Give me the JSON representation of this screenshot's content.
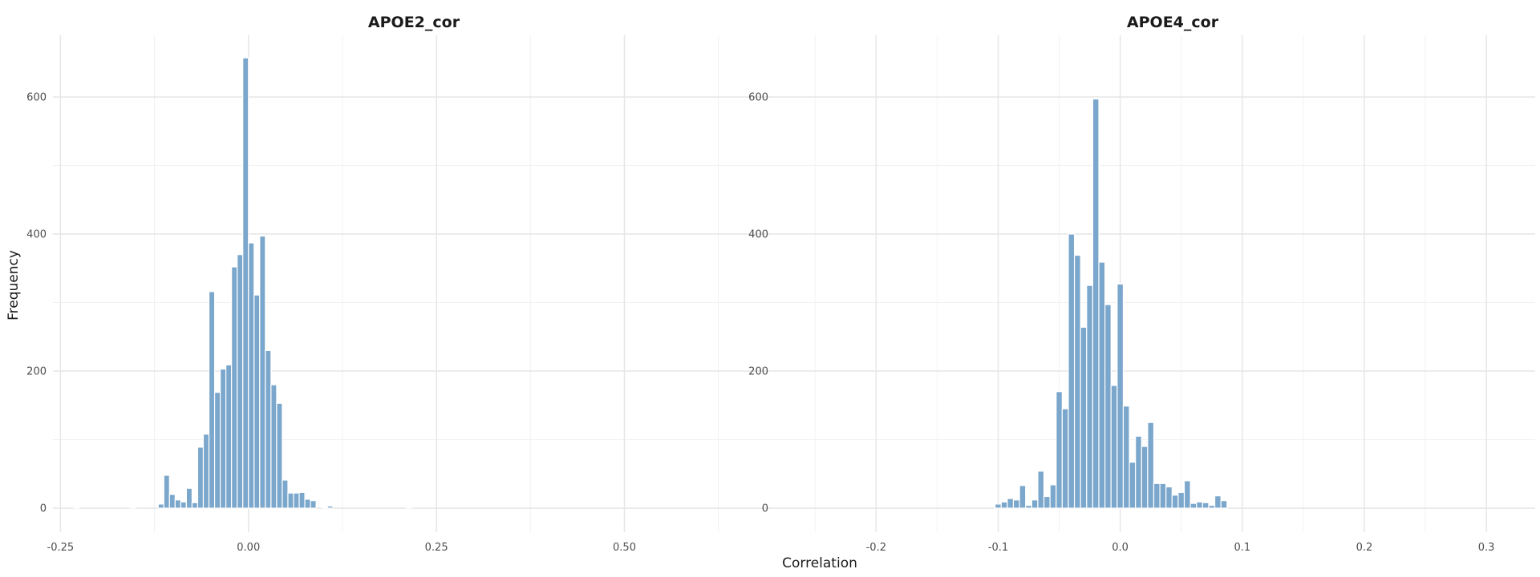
{
  "chart_data": [
    {
      "type": "bar",
      "title": "APOE2_cor",
      "xlim": [
        -0.26,
        0.7
      ],
      "ylim": [
        -35,
        690
      ],
      "bin_width": 0.0075,
      "x_major_ticks": [
        -0.25,
        0.0,
        0.25,
        0.5
      ],
      "x_tick_labels": [
        "-0.25",
        "0.00",
        "0.25",
        "0.50"
      ],
      "x_minor_ticks": [
        -0.125,
        0.125,
        0.375,
        0.625
      ],
      "y_major_ticks": [
        0,
        200,
        400,
        600
      ],
      "y_tick_labels": [
        "0",
        "200",
        "400",
        "600"
      ],
      "y_minor_ticks": [
        100,
        300,
        500
      ],
      "bins": [
        {
          "x": -0.2325,
          "count": 1
        },
        {
          "x": -0.1575,
          "count": 1
        },
        {
          "x": -0.12,
          "count": 6
        },
        {
          "x": -0.1125,
          "count": 48
        },
        {
          "x": -0.105,
          "count": 20
        },
        {
          "x": -0.0975,
          "count": 12
        },
        {
          "x": -0.09,
          "count": 9
        },
        {
          "x": -0.0825,
          "count": 29
        },
        {
          "x": -0.075,
          "count": 8
        },
        {
          "x": -0.0675,
          "count": 89
        },
        {
          "x": -0.06,
          "count": 108
        },
        {
          "x": -0.0525,
          "count": 316
        },
        {
          "x": -0.045,
          "count": 169
        },
        {
          "x": -0.0375,
          "count": 203
        },
        {
          "x": -0.03,
          "count": 209
        },
        {
          "x": -0.0225,
          "count": 352
        },
        {
          "x": -0.015,
          "count": 370
        },
        {
          "x": -0.0075,
          "count": 657
        },
        {
          "x": 0.0,
          "count": 387
        },
        {
          "x": 0.0075,
          "count": 311
        },
        {
          "x": 0.015,
          "count": 397
        },
        {
          "x": 0.0225,
          "count": 230
        },
        {
          "x": 0.03,
          "count": 180
        },
        {
          "x": 0.0375,
          "count": 153
        },
        {
          "x": 0.045,
          "count": 41
        },
        {
          "x": 0.0525,
          "count": 22
        },
        {
          "x": 0.06,
          "count": 22
        },
        {
          "x": 0.0675,
          "count": 23
        },
        {
          "x": 0.075,
          "count": 13
        },
        {
          "x": 0.0825,
          "count": 11
        },
        {
          "x": 0.0975,
          "count": 1
        },
        {
          "x": 0.105,
          "count": 3
        },
        {
          "x": 0.21,
          "count": 1
        }
      ]
    },
    {
      "type": "bar",
      "title": "APOE4_cor",
      "xlim": [
        -0.283,
        0.34
      ],
      "ylim": [
        -35,
        690
      ],
      "bin_width": 0.005,
      "x_major_ticks": [
        -0.2,
        -0.1,
        0.0,
        0.1,
        0.2,
        0.3
      ],
      "x_tick_labels": [
        "-0.2",
        "-0.1",
        "0.0",
        "0.1",
        "0.2",
        "0.3"
      ],
      "x_minor_ticks": [
        -0.25,
        -0.15,
        -0.05,
        0.05,
        0.15,
        0.25
      ],
      "y_major_ticks": [
        0,
        200,
        400,
        600
      ],
      "y_tick_labels": [
        "0",
        "200",
        "400",
        "600"
      ],
      "y_minor_ticks": [
        100,
        300,
        500
      ],
      "bins": [
        {
          "x": -0.1025,
          "count": 6
        },
        {
          "x": -0.0975,
          "count": 9
        },
        {
          "x": -0.0925,
          "count": 14
        },
        {
          "x": -0.0875,
          "count": 12
        },
        {
          "x": -0.0825,
          "count": 33
        },
        {
          "x": -0.0775,
          "count": 4
        },
        {
          "x": -0.0725,
          "count": 12
        },
        {
          "x": -0.0675,
          "count": 54
        },
        {
          "x": -0.0625,
          "count": 17
        },
        {
          "x": -0.0575,
          "count": 34
        },
        {
          "x": -0.0525,
          "count": 170
        },
        {
          "x": -0.0475,
          "count": 145
        },
        {
          "x": -0.0425,
          "count": 400
        },
        {
          "x": -0.0375,
          "count": 369
        },
        {
          "x": -0.0325,
          "count": 264
        },
        {
          "x": -0.0275,
          "count": 325
        },
        {
          "x": -0.0225,
          "count": 597
        },
        {
          "x": -0.0175,
          "count": 359
        },
        {
          "x": -0.0125,
          "count": 297
        },
        {
          "x": -0.0075,
          "count": 179
        },
        {
          "x": -0.0025,
          "count": 327
        },
        {
          "x": 0.0025,
          "count": 149
        },
        {
          "x": 0.0075,
          "count": 67
        },
        {
          "x": 0.0125,
          "count": 105
        },
        {
          "x": 0.0175,
          "count": 90
        },
        {
          "x": 0.0225,
          "count": 125
        },
        {
          "x": 0.0275,
          "count": 36
        },
        {
          "x": 0.0325,
          "count": 36
        },
        {
          "x": 0.0375,
          "count": 31
        },
        {
          "x": 0.0425,
          "count": 19
        },
        {
          "x": 0.0475,
          "count": 23
        },
        {
          "x": 0.0525,
          "count": 40
        },
        {
          "x": 0.0575,
          "count": 7
        },
        {
          "x": 0.0625,
          "count": 9
        },
        {
          "x": 0.0675,
          "count": 8
        },
        {
          "x": 0.0725,
          "count": 4
        },
        {
          "x": 0.0775,
          "count": 18
        },
        {
          "x": 0.0825,
          "count": 11
        }
      ]
    }
  ],
  "xlabel": "Correlation",
  "ylabel": "Frequency",
  "colors": {
    "bar_fill": "#7ba7cc",
    "bar_outline": "#ffffff",
    "grid_major": "#e6e6e6",
    "grid_minor": "#f2f2f2",
    "background": "#ffffff"
  },
  "grid": true,
  "legend": "none"
}
